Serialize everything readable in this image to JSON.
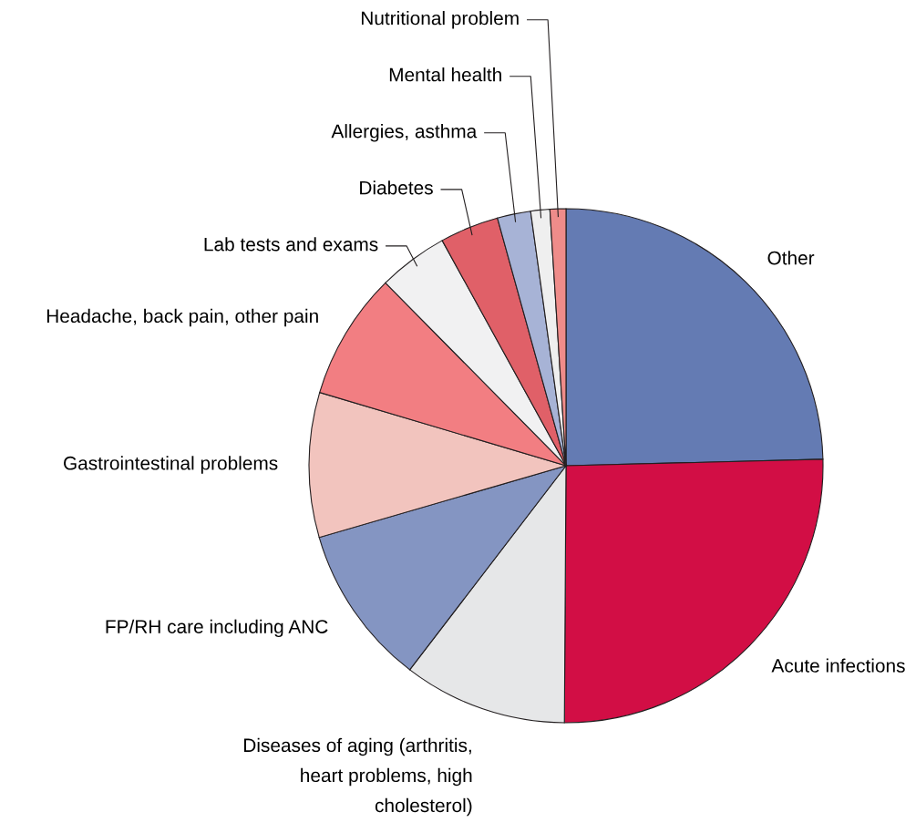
{
  "chart_data": {
    "type": "pie",
    "categories": [
      "Other",
      "Acute infections",
      "Diseases of aging (arthritis,\nheart problems, high\ncholesterol)",
      "FP/RH care including ANC",
      "Gastrointestinal problems",
      "Headache, back pain, other pain",
      "Lab tests and exams",
      "Diabetes",
      "Allergies, asthma",
      "Mental health",
      "Nutritional problem"
    ],
    "values": [
      24.6,
      25.5,
      10.3,
      10.1,
      9.1,
      8.0,
      4.4,
      3.7,
      2.1,
      1.2,
      1.0
    ],
    "colors": [
      "#647bb3",
      "#d20e45",
      "#e6e7e8",
      "#8495c2",
      "#f2c4be",
      "#f27e82",
      "#f1f1f2",
      "#e06068",
      "#a7b3d6",
      "#efefef",
      "#ef8c8a"
    ]
  }
}
